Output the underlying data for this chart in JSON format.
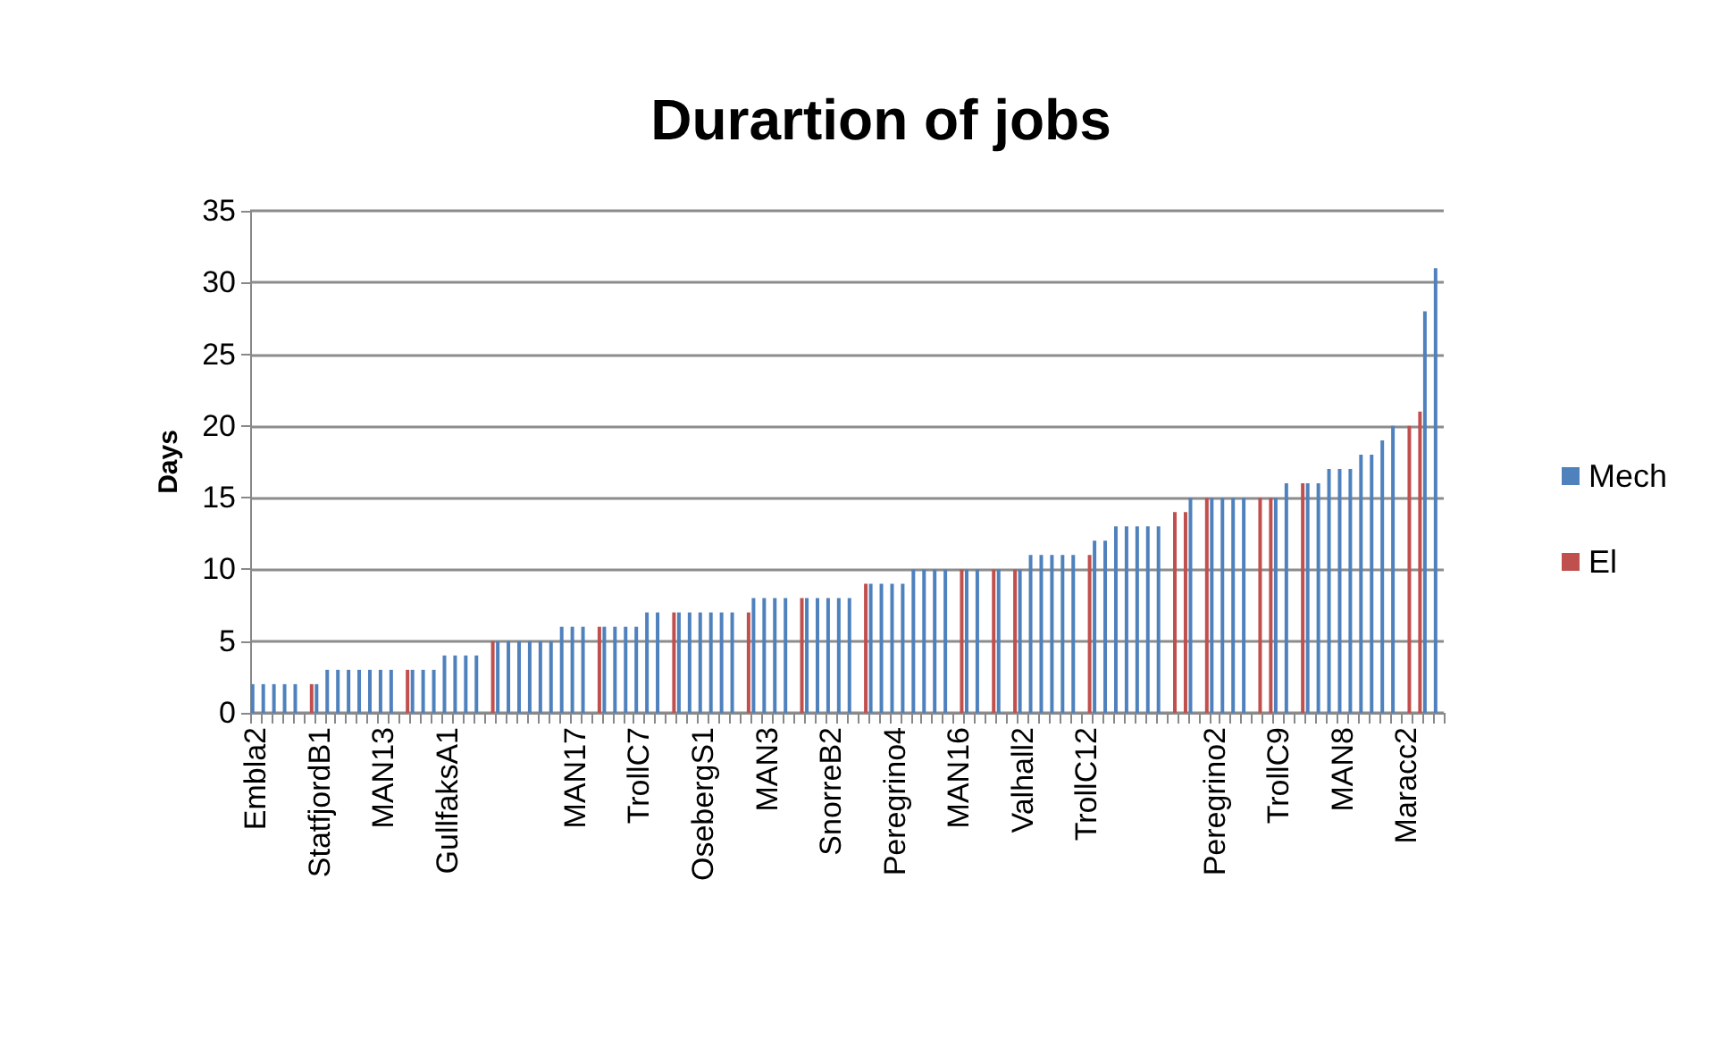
{
  "chart_data": {
    "type": "bar",
    "title": "Durartion of jobs",
    "ylabel": "Days",
    "categories": [
      "Embla2",
      null,
      null,
      null,
      null,
      null,
      "StatfjordB1",
      null,
      null,
      null,
      null,
      null,
      "MAN13",
      null,
      null,
      null,
      null,
      null,
      "GullfaksA1",
      null,
      null,
      null,
      null,
      null,
      null,
      null,
      null,
      null,
      null,
      null,
      "MAN17",
      null,
      null,
      null,
      null,
      null,
      "TrollC7",
      null,
      null,
      null,
      null,
      null,
      "OsebergS1",
      null,
      null,
      null,
      null,
      null,
      "MAN3",
      null,
      null,
      null,
      null,
      null,
      "SnorreB2",
      null,
      null,
      null,
      null,
      null,
      "Peregrino4",
      null,
      null,
      null,
      null,
      null,
      "MAN16",
      null,
      null,
      null,
      null,
      null,
      "Valhall2",
      null,
      null,
      null,
      null,
      null,
      "TrollC12",
      null,
      null,
      null,
      null,
      null,
      null,
      null,
      null,
      null,
      null,
      null,
      "Peregrino2",
      null,
      null,
      null,
      null,
      null,
      "TrollC9",
      null,
      null,
      null,
      null,
      null,
      "MAN8",
      null,
      null,
      null,
      null,
      null,
      "Maracc2",
      null,
      null,
      null
    ],
    "series": [
      {
        "name": "Mech",
        "color": "#4f81bd",
        "values": [
          2,
          2,
          2,
          2,
          2,
          null,
          2,
          3,
          3,
          3,
          3,
          3,
          3,
          3,
          null,
          3,
          3,
          3,
          4,
          4,
          4,
          4,
          null,
          5,
          5,
          5,
          5,
          5,
          5,
          6,
          6,
          6,
          null,
          6,
          6,
          6,
          6,
          7,
          7,
          null,
          7,
          7,
          7,
          7,
          7,
          7,
          null,
          8,
          8,
          8,
          8,
          null,
          8,
          8,
          8,
          8,
          8,
          null,
          9,
          9,
          9,
          9,
          10,
          10,
          10,
          10,
          null,
          10,
          10,
          null,
          10,
          null,
          10,
          11,
          11,
          11,
          11,
          11,
          null,
          12,
          12,
          13,
          13,
          13,
          13,
          13,
          null,
          null,
          15,
          null,
          15,
          15,
          15,
          15,
          null,
          null,
          15,
          16,
          null,
          16,
          16,
          17,
          17,
          17,
          18,
          18,
          19,
          20,
          null,
          null,
          28,
          31
        ]
      },
      {
        "name": "El",
        "color": "#c0504d",
        "values": [
          null,
          null,
          null,
          null,
          null,
          2,
          null,
          null,
          null,
          null,
          null,
          null,
          null,
          null,
          3,
          null,
          null,
          null,
          null,
          null,
          null,
          null,
          5,
          null,
          null,
          null,
          null,
          null,
          null,
          null,
          null,
          null,
          6,
          null,
          null,
          null,
          null,
          null,
          null,
          7,
          null,
          null,
          null,
          null,
          null,
          null,
          7,
          null,
          null,
          null,
          null,
          8,
          null,
          null,
          null,
          null,
          null,
          9,
          null,
          null,
          null,
          null,
          null,
          null,
          null,
          null,
          10,
          null,
          null,
          10,
          null,
          10,
          null,
          null,
          null,
          null,
          null,
          null,
          11,
          null,
          null,
          null,
          null,
          null,
          null,
          null,
          14,
          14,
          null,
          15,
          null,
          null,
          null,
          null,
          15,
          15,
          null,
          null,
          16,
          null,
          null,
          null,
          null,
          null,
          null,
          null,
          null,
          null,
          20,
          21,
          null,
          null
        ]
      }
    ],
    "ylim": [
      0,
      35
    ],
    "yticks": [
      0,
      5,
      10,
      15,
      20,
      25,
      30,
      35
    ],
    "grid": "y",
    "legend": "right"
  }
}
